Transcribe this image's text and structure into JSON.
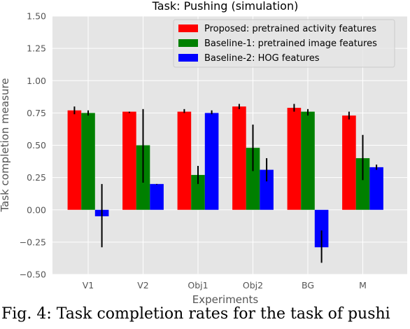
{
  "caption": "Fig. 4: Task completion rates for the task of pushi",
  "chart_data": {
    "type": "bar",
    "title": "Task: Pushing (simulation)",
    "xlabel": "Experiments",
    "ylabel": "Task completion measure",
    "categories": [
      "V1",
      "V2",
      "Obj1",
      "Obj2",
      "BG",
      "M"
    ],
    "ylim": [
      -0.5,
      1.5
    ],
    "yticks": [
      -0.5,
      -0.25,
      0.0,
      0.25,
      0.5,
      0.75,
      1.0,
      1.25,
      1.5
    ],
    "ytick_labels": [
      "−0.50",
      "−0.25",
      "0.00",
      "0.25",
      "0.50",
      "0.75",
      "1.00",
      "1.25",
      "1.50"
    ],
    "grid": true,
    "legend_position": "top-right",
    "series": [
      {
        "name": "Proposed: pretrained activity features",
        "color": "#ff0000",
        "values": [
          0.77,
          0.76,
          0.76,
          0.8,
          0.79,
          0.73
        ],
        "err_low": [
          0.74,
          0.75,
          0.75,
          0.78,
          0.76,
          0.7
        ],
        "err_high": [
          0.8,
          0.76,
          0.78,
          0.82,
          0.82,
          0.76
        ]
      },
      {
        "name": "Baseline-1: pretrained image features",
        "color": "#008000",
        "values": [
          0.75,
          0.5,
          0.27,
          0.48,
          0.76,
          0.4
        ],
        "err_low": [
          0.73,
          0.21,
          0.2,
          0.3,
          0.73,
          0.23
        ],
        "err_high": [
          0.77,
          0.78,
          0.34,
          0.66,
          0.78,
          0.58
        ]
      },
      {
        "name": "Baseline-2: HOG features",
        "color": "#0000ff",
        "values": [
          -0.05,
          0.2,
          0.75,
          0.31,
          -0.29,
          0.33
        ],
        "err_low": [
          -0.29,
          0.2,
          0.74,
          0.22,
          -0.41,
          0.31
        ],
        "err_high": [
          0.2,
          0.2,
          0.77,
          0.4,
          -0.16,
          0.35
        ]
      }
    ]
  }
}
